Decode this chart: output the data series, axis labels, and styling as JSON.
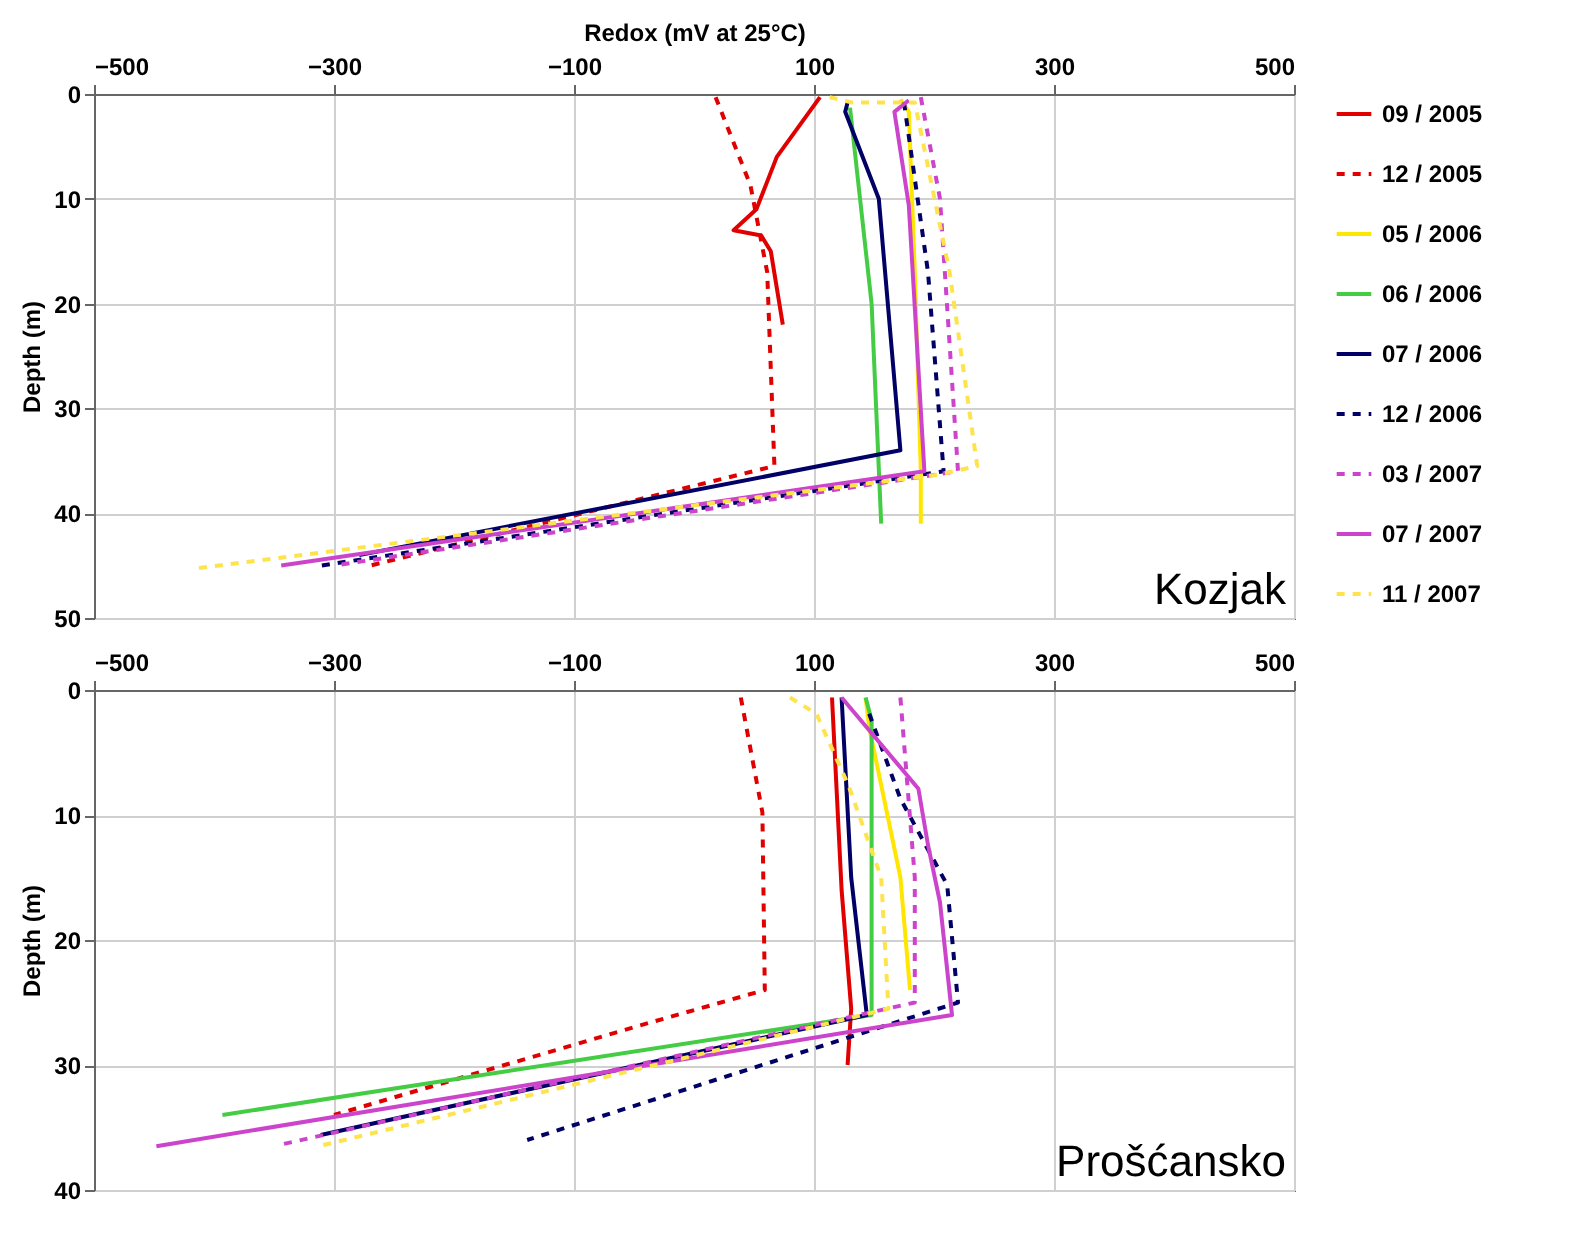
{
  "chart_data": [
    {
      "type": "line",
      "xlabel": "Redox (mV at 25°C)",
      "ylabel": "Depth (m)",
      "xlim": [
        -500,
        500
      ],
      "xticks": [
        -500,
        -300,
        -100,
        100,
        300,
        500
      ],
      "ylim": [
        50,
        0
      ],
      "yticks": [
        0,
        10,
        20,
        30,
        40,
        50
      ],
      "grid": true,
      "legend": "right",
      "annotations": [
        "Kozjak"
      ],
      "series": [
        {
          "name": "09 / 2005",
          "color": "#e00000",
          "line_style": "solid",
          "x": [
            105,
            69,
            52,
            33,
            56,
            64,
            74
          ],
          "values": [
            0.3,
            6,
            11,
            13,
            13.5,
            15,
            22
          ]
        },
        {
          "name": "12 / 2005",
          "color": "#e00000",
          "line_style": "dashed",
          "x": [
            18,
            47,
            61,
            67,
            -270
          ],
          "values": [
            0.3,
            8.7,
            17,
            35.5,
            45
          ]
        },
        {
          "name": "05 / 2006",
          "color": "#ffe600",
          "line_style": "solid",
          "x": [
            172,
            179,
            184,
            189,
            189
          ],
          "values": [
            0.5,
            1.7,
            17,
            36,
            41
          ]
        },
        {
          "name": "06 / 2006",
          "color": "#44cc44",
          "line_style": "solid",
          "x": [
            130,
            148,
            156
          ],
          "values": [
            1.3,
            20,
            41
          ]
        },
        {
          "name": "07 / 2006",
          "color": "#000066",
          "line_style": "solid",
          "x": [
            128,
            126,
            154,
            172,
            -279
          ],
          "values": [
            0.8,
            1.7,
            10,
            34,
            44
          ]
        },
        {
          "name": "12 / 2006",
          "color": "#000066",
          "line_style": "dashed",
          "x": [
            175,
            195,
            208,
            -311
          ],
          "values": [
            0.8,
            17,
            36,
            45
          ]
        },
        {
          "name": "03 / 2007",
          "color": "#cc44cc",
          "line_style": "dashed",
          "x": [
            189,
            205,
            220,
            -300
          ],
          "values": [
            0.3,
            10,
            36,
            45
          ]
        },
        {
          "name": "07 / 2007",
          "color": "#cc44cc",
          "line_style": "solid",
          "x": [
            179,
            167,
            179,
            192,
            -344
          ],
          "values": [
            0.6,
            1.7,
            10.6,
            36,
            45
          ]
        },
        {
          "name": "11 / 2007",
          "color": "#ffe34d",
          "line_style": "dashed",
          "x": [
            113,
            131,
            184,
            213,
            236,
            205,
            -418
          ],
          "values": [
            0.3,
            0.8,
            0.8,
            17,
            35.5,
            36.3,
            45.3
          ]
        }
      ]
    },
    {
      "type": "line",
      "ylabel": "Depth (m)",
      "xlim": [
        -500,
        500
      ],
      "xticks": [
        -500,
        -300,
        -100,
        100,
        300,
        500
      ],
      "ylim": [
        40,
        0
      ],
      "yticks": [
        0,
        10,
        20,
        30,
        40
      ],
      "grid": true,
      "annotations": [
        "Prošćansko"
      ],
      "series": [
        {
          "color": "#e00000",
          "line_style": "solid",
          "x": [
            115,
            123,
            131,
            128
          ],
          "values": [
            0.6,
            16,
            25.5,
            30
          ]
        },
        {
          "color": "#e00000",
          "line_style": "dashed",
          "x": [
            39,
            57,
            59,
            -51,
            -300
          ],
          "values": [
            0.6,
            9.8,
            24,
            27,
            34
          ]
        },
        {
          "color": "#ffe600",
          "line_style": "solid",
          "x": [
            143,
            146,
            172,
            180
          ],
          "values": [
            0.6,
            3,
            15,
            24
          ]
        },
        {
          "color": "#44cc44",
          "line_style": "solid",
          "x": [
            143,
            148,
            148,
            -393
          ],
          "values": [
            0.6,
            2.4,
            26,
            34
          ]
        },
        {
          "color": "#000066",
          "line_style": "solid",
          "x": [
            123,
            131,
            144,
            -311
          ],
          "values": [
            0.6,
            15,
            26,
            35.6
          ]
        },
        {
          "color": "#000066",
          "line_style": "dashed",
          "x": [
            146,
            172,
            211,
            220,
            -139
          ],
          "values": [
            1.9,
            8.7,
            15.6,
            25,
            36
          ]
        },
        {
          "color": "#cc44cc",
          "line_style": "dashed",
          "x": [
            172,
            184,
            184,
            -346
          ],
          "values": [
            0.6,
            15,
            25,
            36.4
          ]
        },
        {
          "color": "#cc44cc",
          "line_style": "solid",
          "x": [
            123,
            187,
            195,
            205,
            215,
            -448
          ],
          "values": [
            0.6,
            7.9,
            12.4,
            17,
            26,
            36.5
          ]
        },
        {
          "color": "#ffe34d",
          "line_style": "dashed",
          "x": [
            80,
            102,
            129,
            156,
            162,
            -313
          ],
          "values": [
            0.6,
            1.9,
            7.7,
            15,
            25.5,
            36.5
          ]
        }
      ]
    }
  ]
}
